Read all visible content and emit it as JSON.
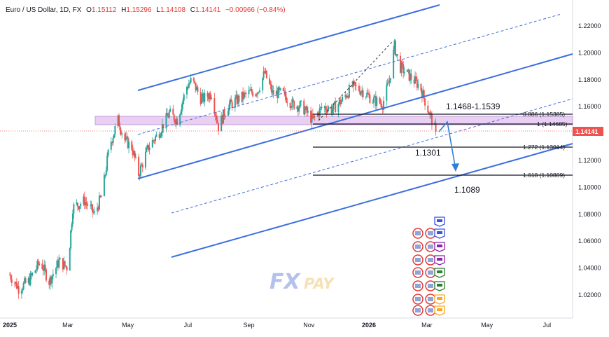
{
  "header": {
    "symbol": "Euro / US Dollar, 1D, FX",
    "open_label": "O",
    "open": "1.15112",
    "high_label": "H",
    "high": "1.15296",
    "low_label": "L",
    "low": "1.14108",
    "close_label": "C",
    "close": "1.14141",
    "change": "−0.00966 (−0.84%)"
  },
  "colors": {
    "up": "#26a69a",
    "down": "#ef5350",
    "channel": "#3c6ee0",
    "zone_fill": "#e6c8f0",
    "price_tag": "#ef5350",
    "watermark": "#7a8fe0"
  },
  "watermark": {
    "text_a": "FX",
    "text_b": "PAY"
  },
  "price_tag": "1.14141",
  "annotations": {
    "zone_label": "1.1468-1.1539",
    "target1_label": "1.1301",
    "target2_label": "1.1089"
  },
  "fib_levels": [
    {
      "label": "0.886 (1.15385)",
      "value": 1.15385
    },
    {
      "label": "1 (1.14685)",
      "value": 1.14685
    },
    {
      "label": "1.272 (1.13014)",
      "value": 1.13014
    },
    {
      "label": "1.618 (1.10889)",
      "value": 1.10889
    }
  ],
  "chart_data": {
    "type": "candlestick",
    "instrument": "EUR/USD",
    "timeframe": "1D",
    "x_tick_labels": [
      "2025",
      "Mar",
      "May",
      "Jul",
      "Sep",
      "Nov",
      "2026",
      "Mar",
      "May",
      "Jul"
    ],
    "y_tick_labels": [
      "1.22000",
      "1.20000",
      "1.18000",
      "1.16000",
      "1.14000",
      "1.12000",
      "1.10000",
      "1.08000",
      "1.06000",
      "1.04000",
      "1.02000"
    ],
    "ylim": [
      1.008,
      1.233
    ],
    "last_close": 1.14141,
    "price_path": [
      [
        "2025-01-01",
        1.035
      ],
      [
        "2025-01-10",
        1.025
      ],
      [
        "2025-01-20",
        1.03
      ],
      [
        "2025-02-01",
        1.045
      ],
      [
        "2025-02-10",
        1.03
      ],
      [
        "2025-02-20",
        1.045
      ],
      [
        "2025-03-01",
        1.04
      ],
      [
        "2025-03-06",
        1.085
      ],
      [
        "2025-03-18",
        1.09
      ],
      [
        "2025-03-28",
        1.08
      ],
      [
        "2025-04-05",
        1.095
      ],
      [
        "2025-04-12",
        1.13
      ],
      [
        "2025-04-21",
        1.15
      ],
      [
        "2025-04-28",
        1.135
      ],
      [
        "2025-05-05",
        1.13
      ],
      [
        "2025-05-12",
        1.11
      ],
      [
        "2025-05-22",
        1.13
      ],
      [
        "2025-06-01",
        1.14
      ],
      [
        "2025-06-12",
        1.155
      ],
      [
        "2025-06-20",
        1.15
      ],
      [
        "2025-06-30",
        1.175
      ],
      [
        "2025-07-05",
        1.18
      ],
      [
        "2025-07-15",
        1.165
      ],
      [
        "2025-07-25",
        1.17
      ],
      [
        "2025-08-01",
        1.145
      ],
      [
        "2025-08-10",
        1.16
      ],
      [
        "2025-08-20",
        1.165
      ],
      [
        "2025-09-01",
        1.17
      ],
      [
        "2025-09-10",
        1.172
      ],
      [
        "2025-09-17",
        1.185
      ],
      [
        "2025-09-25",
        1.17
      ],
      [
        "2025-10-05",
        1.17
      ],
      [
        "2025-10-15",
        1.162
      ],
      [
        "2025-10-25",
        1.16
      ],
      [
        "2025-11-05",
        1.15
      ],
      [
        "2025-11-15",
        1.16
      ],
      [
        "2025-11-25",
        1.158
      ],
      [
        "2025-12-05",
        1.165
      ],
      [
        "2025-12-15",
        1.175
      ],
      [
        "2025-12-25",
        1.172
      ],
      [
        "2026-01-05",
        1.165
      ],
      [
        "2026-01-15",
        1.162
      ],
      [
        "2026-01-22",
        1.18
      ],
      [
        "2026-01-27",
        1.205
      ],
      [
        "2026-02-01",
        1.19
      ],
      [
        "2026-02-08",
        1.185
      ],
      [
        "2026-02-15",
        1.18
      ],
      [
        "2026-02-22",
        1.175
      ],
      [
        "2026-03-01",
        1.16
      ],
      [
        "2026-03-05",
        1.152
      ],
      [
        "2026-03-10",
        1.1414
      ]
    ],
    "horizontal_zone": [
      1.14685,
      1.15385
    ],
    "projected_targets": [
      1.1301,
      1.1089
    ],
    "grid": false,
    "legend": "none"
  }
}
